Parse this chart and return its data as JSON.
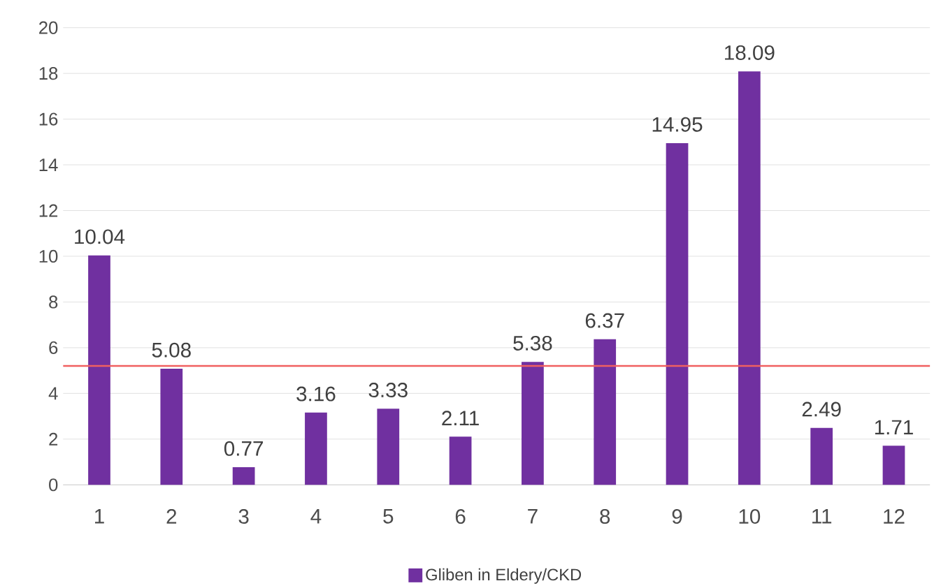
{
  "chart_data": {
    "type": "bar",
    "categories": [
      "1",
      "2",
      "3",
      "4",
      "5",
      "6",
      "7",
      "8",
      "9",
      "10",
      "11",
      "12"
    ],
    "series": [
      {
        "name": "Gliben in Eldery/CKD",
        "color": "#7030a0",
        "values": [
          10.04,
          5.08,
          0.77,
          3.16,
          3.33,
          2.11,
          5.38,
          6.37,
          14.95,
          18.09,
          2.49,
          1.71
        ]
      }
    ],
    "data_labels": true,
    "ylim": [
      0,
      20
    ],
    "yticks": [
      0,
      2,
      4,
      6,
      8,
      10,
      12,
      14,
      16,
      18,
      20
    ],
    "grid": "y",
    "legend": "bottom",
    "ref_lines": [
      {
        "axis": "y",
        "value": 5.2,
        "color": "#f06060"
      }
    ]
  }
}
